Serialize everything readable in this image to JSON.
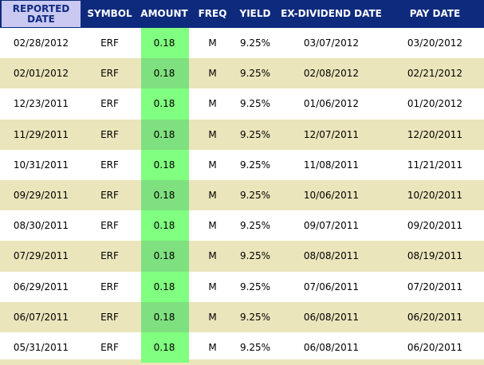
{
  "table": {
    "columns": [
      "REPORTED DATE",
      "SYMBOL",
      "AMOUNT",
      "FREQ",
      "YIELD",
      "EX-DIVIDEND DATE",
      "PAY DATE"
    ],
    "rows": [
      [
        "02/28/2012",
        "ERF",
        "0.18",
        "M",
        "9.25%",
        "03/07/2012",
        "03/20/2012"
      ],
      [
        "02/01/2012",
        "ERF",
        "0.18",
        "M",
        "9.25%",
        "02/08/2012",
        "02/21/2012"
      ],
      [
        "12/23/2011",
        "ERF",
        "0.18",
        "M",
        "9.25%",
        "01/06/2012",
        "01/20/2012"
      ],
      [
        "11/29/2011",
        "ERF",
        "0.18",
        "M",
        "9.25%",
        "12/07/2011",
        "12/20/2011"
      ],
      [
        "10/31/2011",
        "ERF",
        "0.18",
        "M",
        "9.25%",
        "11/08/2011",
        "11/21/2011"
      ],
      [
        "09/29/2011",
        "ERF",
        "0.18",
        "M",
        "9.25%",
        "10/06/2011",
        "10/20/2011"
      ],
      [
        "08/30/2011",
        "ERF",
        "0.18",
        "M",
        "9.25%",
        "09/07/2011",
        "09/20/2011"
      ],
      [
        "07/29/2011",
        "ERF",
        "0.18",
        "M",
        "9.25%",
        "08/08/2011",
        "08/19/2011"
      ],
      [
        "06/29/2011",
        "ERF",
        "0.18",
        "M",
        "9.25%",
        "07/06/2011",
        "07/20/2011"
      ],
      [
        "06/07/2011",
        "ERF",
        "0.18",
        "M",
        "9.25%",
        "06/08/2011",
        "06/20/2011"
      ],
      [
        "05/31/2011",
        "ERF",
        "0.18",
        "M",
        "9.25%",
        "06/08/2011",
        "06/20/2011"
      ]
    ]
  }
}
